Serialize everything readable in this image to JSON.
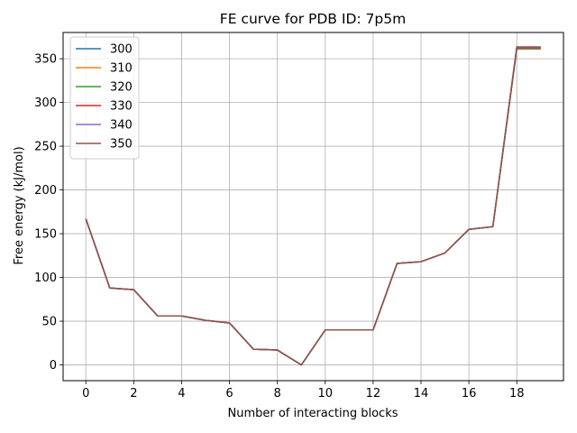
{
  "chart_data": {
    "type": "line",
    "title": "FE curve for PDB ID: 7p5m",
    "xlabel": "Number of interacting blocks",
    "ylabel": "Free energy (kJ/mol)",
    "xlim": [
      -0.95,
      19.95
    ],
    "ylim": [
      -18,
      380
    ],
    "xticks": [
      0,
      2,
      4,
      6,
      8,
      10,
      12,
      14,
      16,
      18
    ],
    "yticks": [
      0,
      50,
      100,
      150,
      200,
      250,
      300,
      350
    ],
    "grid": true,
    "legend_position": "top-left",
    "x": [
      0,
      1,
      2,
      3,
      4,
      5,
      6,
      7,
      8,
      9,
      10,
      11,
      12,
      13,
      14,
      15,
      16,
      17,
      18,
      19
    ],
    "series": [
      {
        "name": "300",
        "color": "#1f77b4",
        "values": [
          167,
          88,
          86,
          56,
          56,
          51,
          48,
          18,
          17,
          0,
          40,
          40,
          40,
          116,
          118,
          128,
          155,
          158,
          361,
          361
        ]
      },
      {
        "name": "310",
        "color": "#ff7f0e",
        "values": [
          167,
          88,
          86,
          56,
          56,
          51,
          48,
          18,
          17,
          0,
          40,
          40,
          40,
          116,
          118,
          128,
          155,
          158,
          361.5,
          361.5
        ]
      },
      {
        "name": "320",
        "color": "#2ca02c",
        "values": [
          167,
          88,
          86,
          56,
          56,
          51,
          48,
          18,
          17,
          0,
          40,
          40,
          40,
          116,
          118,
          128,
          155,
          158,
          362,
          362
        ]
      },
      {
        "name": "330",
        "color": "#d62728",
        "values": [
          167,
          88,
          86,
          56,
          56,
          51,
          48,
          18,
          17,
          0,
          40,
          40,
          40,
          116,
          118,
          128,
          155,
          158,
          362.5,
          362.5
        ]
      },
      {
        "name": "340",
        "color": "#9467bd",
        "values": [
          167,
          88,
          86,
          56,
          56,
          51,
          48,
          18,
          17,
          0,
          40,
          40,
          40,
          116,
          118,
          128,
          155,
          158,
          363,
          363
        ]
      },
      {
        "name": "350",
        "color": "#8c564b",
        "values": [
          167,
          88,
          86,
          56,
          56,
          51,
          48,
          18,
          17,
          0,
          40,
          40,
          40,
          116,
          118,
          128,
          155,
          158,
          363.5,
          363.5
        ]
      }
    ]
  }
}
